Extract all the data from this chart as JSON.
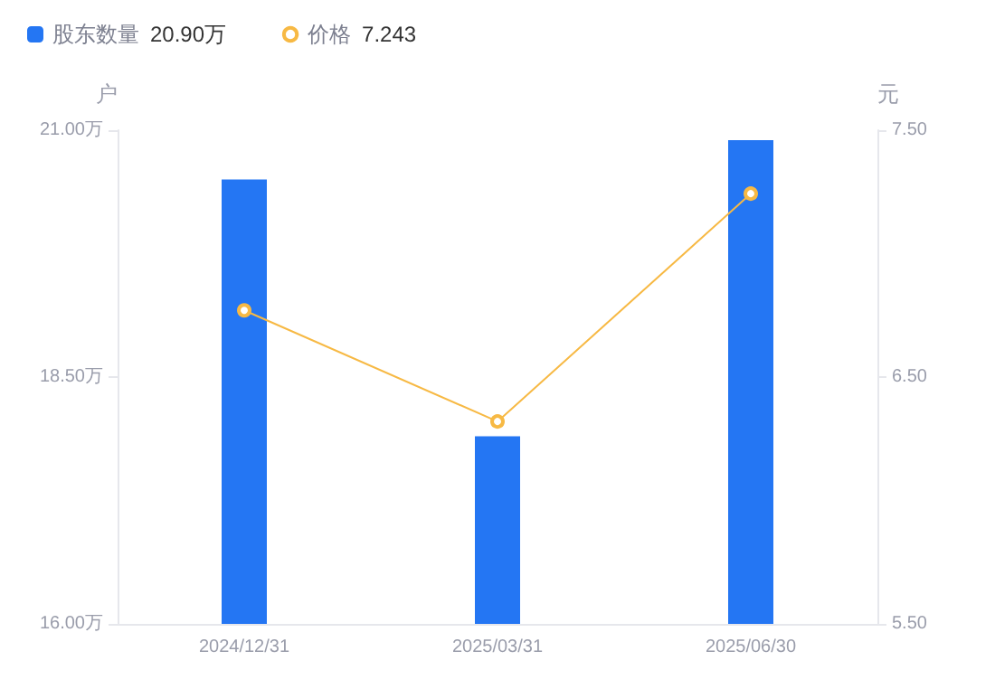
{
  "chart_data": {
    "type": "bar",
    "categories": [
      "2024/12/31",
      "2025/03/31",
      "2025/06/30"
    ],
    "series": [
      {
        "name": "股东数量",
        "color": "#2476f3",
        "values": [
          20.5,
          17.9,
          20.9
        ]
      },
      {
        "name": "价格",
        "type": "line",
        "axis": "y2",
        "color": "#f7b944",
        "values": [
          6.77,
          6.32,
          7.243
        ]
      }
    ],
    "ylabel": "户",
    "y2label": "元",
    "ylim": [
      16,
      21
    ],
    "yticks": [
      {
        "value": 16,
        "label": "16.00万"
      },
      {
        "value": 18.5,
        "label": "18.50万"
      },
      {
        "value": 21,
        "label": "21.00万"
      }
    ],
    "y2lim": [
      5.5,
      7.5
    ],
    "y2ticks": [
      {
        "value": 5.5,
        "label": "5.50"
      },
      {
        "value": 6.5,
        "label": "6.50"
      },
      {
        "value": 7.5,
        "label": "7.50"
      }
    ],
    "annotations": [
      "20.90万",
      "7.243"
    ],
    "legend": "top left",
    "grid": false,
    "marker": "circle",
    "line_style": "solid"
  }
}
